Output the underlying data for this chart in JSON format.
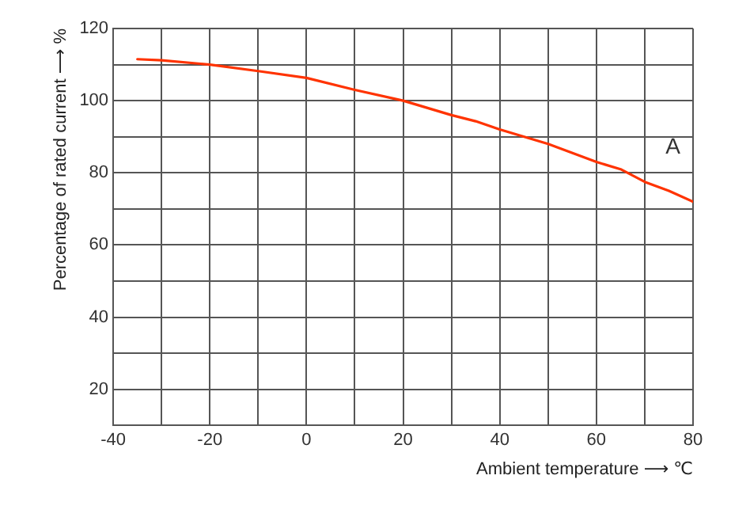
{
  "chart_data": {
    "type": "line",
    "xlabel": "Ambient temperature ⟶ ℃",
    "ylabel": "Percentage of rated current ⟶ %",
    "series": [
      {
        "name": "A",
        "color": "#ff3300",
        "x": [
          -35,
          -30,
          -20,
          -10,
          0,
          10,
          20,
          30,
          35,
          40,
          50,
          60,
          65,
          70,
          75,
          80
        ],
        "values": [
          111.5,
          111.2,
          110,
          108.2,
          106.3,
          103,
          100,
          96,
          94.3,
          92,
          88,
          83,
          81,
          77.5,
          75,
          72
        ]
      }
    ],
    "xlim": [
      -40,
      80
    ],
    "xticks": [
      -40,
      {
        "value": -30,
        "label": null
      },
      -20,
      {
        "value": -10,
        "label": null
      },
      0,
      {
        "value": 10,
        "label": null
      },
      20,
      {
        "value": 30,
        "label": null
      },
      40,
      {
        "value": 50,
        "label": null
      },
      60,
      {
        "value": 70,
        "label": null
      },
      80
    ],
    "ylim": [
      10,
      120
    ],
    "yticks": [
      {
        "value": 10,
        "label": null
      },
      20,
      {
        "value": 30,
        "label": null
      },
      40,
      {
        "value": 50,
        "label": null
      },
      60,
      {
        "value": 70,
        "label": null
      },
      80,
      {
        "value": 90,
        "label": null
      },
      100,
      {
        "value": 110,
        "label": null
      },
      120
    ],
    "grid": true,
    "marker": "none",
    "line_style": "solid"
  }
}
